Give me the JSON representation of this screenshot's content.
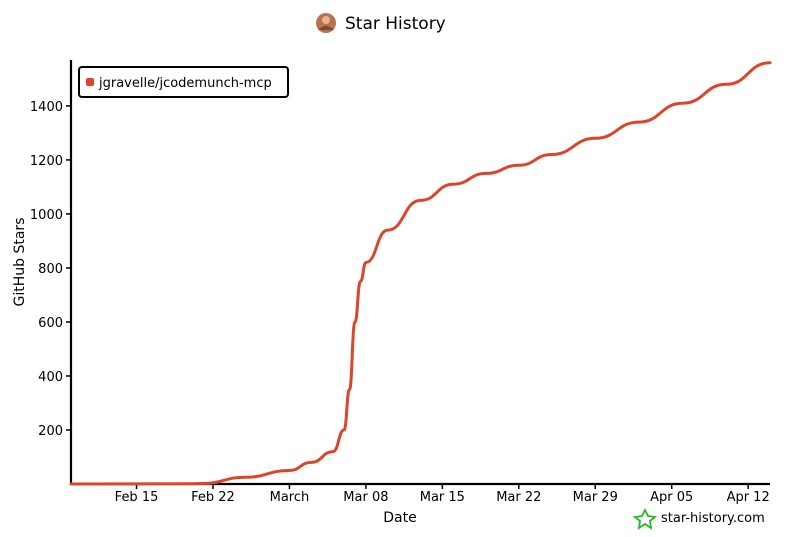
{
  "chart_data": {
    "type": "line",
    "title": "Star History",
    "xlabel": "Date",
    "ylabel": "GitHub Stars",
    "x_ticks": [
      "Feb 15",
      "Feb 22",
      "March",
      "Mar 08",
      "Mar 15",
      "Mar 22",
      "Mar 29",
      "Apr 05",
      "Apr 12"
    ],
    "y_ticks": [
      200,
      400,
      600,
      800,
      1000,
      1200,
      1400
    ],
    "ylim": [
      0,
      1570
    ],
    "xlim": [
      "2026-02-09",
      "2026-04-14"
    ],
    "grid": false,
    "legend_position": "top-left",
    "series": [
      {
        "name": "jgravelle/jcodemunch-mcp",
        "color": "#dd4528",
        "points": [
          {
            "x": "2026-02-09",
            "y": 0
          },
          {
            "x": "2026-02-20",
            "y": 1
          },
          {
            "x": "2026-02-21",
            "y": 2
          },
          {
            "x": "2026-02-25",
            "y": 25
          },
          {
            "x": "2026-03-01",
            "y": 50
          },
          {
            "x": "2026-03-03",
            "y": 80
          },
          {
            "x": "2026-03-05",
            "y": 120
          },
          {
            "x": "2026-03-06",
            "y": 200
          },
          {
            "x": "2026-03-06.5",
            "y": 350
          },
          {
            "x": "2026-03-07",
            "y": 600
          },
          {
            "x": "2026-03-07.5",
            "y": 750
          },
          {
            "x": "2026-03-08",
            "y": 820
          },
          {
            "x": "2026-03-10",
            "y": 940
          },
          {
            "x": "2026-03-13",
            "y": 1050
          },
          {
            "x": "2026-03-16",
            "y": 1110
          },
          {
            "x": "2026-03-19",
            "y": 1150
          },
          {
            "x": "2026-03-22",
            "y": 1180
          },
          {
            "x": "2026-03-25",
            "y": 1220
          },
          {
            "x": "2026-03-29",
            "y": 1280
          },
          {
            "x": "2026-04-02",
            "y": 1340
          },
          {
            "x": "2026-04-06",
            "y": 1410
          },
          {
            "x": "2026-04-10",
            "y": 1480
          },
          {
            "x": "2026-04-14",
            "y": 1560
          }
        ]
      }
    ]
  },
  "brand": {
    "text": "star-history.com",
    "icon": "star-icon",
    "icon_color": "#22bb22"
  },
  "avatar": {
    "icon": "avatar-icon"
  }
}
